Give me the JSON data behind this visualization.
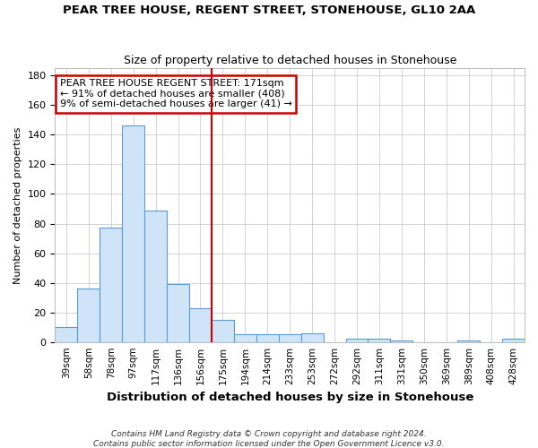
{
  "title": "PEAR TREE HOUSE, REGENT STREET, STONEHOUSE, GL10 2AA",
  "subtitle": "Size of property relative to detached houses in Stonehouse",
  "xlabel": "Distribution of detached houses by size in Stonehouse",
  "ylabel": "Number of detached properties",
  "bar_color": "#d0e4f7",
  "bar_edge_color": "#5b9bd5",
  "bg_color": "#ffffff",
  "vline_x": 6.5,
  "vline_color": "#cc0000",
  "annotation_lines": [
    "PEAR TREE HOUSE REGENT STREET: 171sqm",
    "← 91% of detached houses are smaller (408)",
    "9% of semi-detached houses are larger (41) →"
  ],
  "annotation_box_color": "#cc0000",
  "categories": [
    "39sqm",
    "58sqm",
    "78sqm",
    "97sqm",
    "117sqm",
    "136sqm",
    "156sqm",
    "175sqm",
    "194sqm",
    "214sqm",
    "233sqm",
    "253sqm",
    "272sqm",
    "292sqm",
    "311sqm",
    "331sqm",
    "350sqm",
    "369sqm",
    "389sqm",
    "408sqm",
    "428sqm"
  ],
  "values": [
    10,
    36,
    77,
    146,
    89,
    39,
    23,
    15,
    5,
    5,
    5,
    6,
    0,
    2,
    2,
    1,
    0,
    0,
    1,
    0,
    2
  ],
  "ylim": [
    0,
    185
  ],
  "yticks": [
    0,
    20,
    40,
    60,
    80,
    100,
    120,
    140,
    160,
    180
  ],
  "footnote1": "Contains HM Land Registry data © Crown copyright and database right 2024.",
  "footnote2": "Contains public sector information licensed under the Open Government Licence v3.0."
}
